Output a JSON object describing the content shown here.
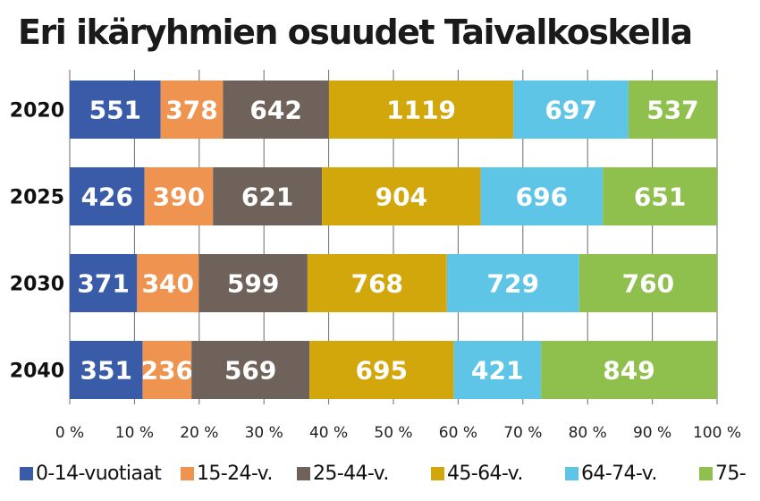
{
  "chart_data": {
    "type": "bar",
    "orientation": "horizontal",
    "stacked": "percent",
    "title": "Eri ikäryhmien osuudet Taivalkoskella",
    "categories": [
      "2020",
      "2025",
      "2030",
      "2040"
    ],
    "series": [
      {
        "name": "0-14-vuotiaat",
        "color": "#3a5ca8",
        "values": [
          551,
          426,
          371,
          351
        ]
      },
      {
        "name": "15-24-v.",
        "color": "#ee9450",
        "values": [
          378,
          390,
          340,
          236
        ]
      },
      {
        "name": "25-44-v.",
        "color": "#6e625a",
        "values": [
          642,
          621,
          599,
          569
        ]
      },
      {
        "name": "45-64-v.",
        "color": "#d1a70c",
        "values": [
          1119,
          904,
          768,
          695
        ]
      },
      {
        "name": "64-74-v.",
        "color": "#5ec5e6",
        "values": [
          697,
          696,
          729,
          421
        ]
      },
      {
        "name": "75-",
        "color": "#8fc04e",
        "values": [
          537,
          651,
          760,
          849
        ]
      }
    ],
    "xticks": [
      "0 %",
      "10 %",
      "20 %",
      "30 %",
      "40 %",
      "50 %",
      "60 %",
      "70 %",
      "80 %",
      "90 %",
      "100 %"
    ],
    "xlim": [
      0,
      100
    ],
    "grid": true,
    "legend": "bottom"
  }
}
